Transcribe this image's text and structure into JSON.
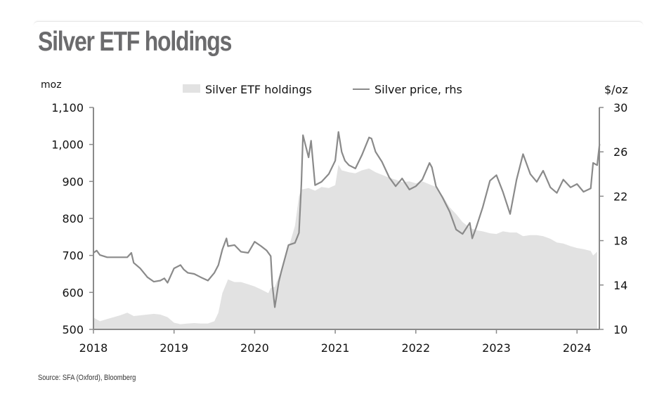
{
  "title": "Silver ETF holdings",
  "source": "Source: SFA (Oxford), Bloomberg",
  "chart_data": {
    "type": "area+line",
    "title": "Silver ETF holdings",
    "xlabel": "",
    "ylabel_left": "moz",
    "ylabel_right": "$/oz",
    "x_ticks": [
      "2018",
      "2019",
      "2020",
      "2021",
      "2022",
      "2023",
      "2024"
    ],
    "x_range": [
      2018.0,
      2024.3
    ],
    "ylim_left": [
      500,
      1100
    ],
    "yticks_left": [
      "1,100",
      "1,000",
      "900",
      "800",
      "700",
      "600",
      "500"
    ],
    "ylim_right": [
      10,
      30
    ],
    "yticks_right": [
      "30",
      "26",
      "22",
      "18",
      "14",
      "10"
    ],
    "grid": false,
    "legend": [
      {
        "name": "Silver ETF holdings",
        "style": "area",
        "color": "#e2e2e2"
      },
      {
        "name": "Silver price, rhs",
        "style": "line",
        "color": "#8a8a8a"
      }
    ],
    "legend_position": "top-center",
    "series": [
      {
        "name": "Silver ETF holdings",
        "axis": "left",
        "x": [
          2018.0,
          2018.08,
          2018.17,
          2018.25,
          2018.33,
          2018.42,
          2018.5,
          2018.58,
          2018.67,
          2018.75,
          2018.83,
          2018.92,
          2019.0,
          2019.08,
          2019.17,
          2019.25,
          2019.33,
          2019.42,
          2019.5,
          2019.55,
          2019.6,
          2019.67,
          2019.75,
          2019.83,
          2019.92,
          2020.0,
          2020.08,
          2020.17,
          2020.2,
          2020.25,
          2020.33,
          2020.42,
          2020.5,
          2020.55,
          2020.58,
          2020.67,
          2020.75,
          2020.83,
          2020.92,
          2021.0,
          2021.04,
          2021.08,
          2021.17,
          2021.25,
          2021.33,
          2021.42,
          2021.5,
          2021.58,
          2021.67,
          2021.75,
          2021.83,
          2021.92,
          2022.0,
          2022.08,
          2022.17,
          2022.25,
          2022.33,
          2022.42,
          2022.5,
          2022.58,
          2022.67,
          2022.75,
          2022.83,
          2022.92,
          2023.0,
          2023.08,
          2023.17,
          2023.25,
          2023.33,
          2023.42,
          2023.5,
          2023.58,
          2023.67,
          2023.75,
          2023.83,
          2023.92,
          2024.0,
          2024.08,
          2024.17,
          2024.2,
          2024.25
        ],
        "values": [
          532,
          522,
          528,
          533,
          538,
          545,
          536,
          538,
          540,
          542,
          540,
          533,
          518,
          514,
          516,
          517,
          516,
          516,
          522,
          545,
          598,
          635,
          628,
          628,
          622,
          616,
          608,
          598,
          612,
          615,
          660,
          720,
          780,
          860,
          878,
          882,
          875,
          885,
          882,
          890,
          945,
          930,
          925,
          922,
          930,
          935,
          925,
          918,
          910,
          905,
          898,
          900,
          895,
          900,
          892,
          885,
          862,
          830,
          812,
          790,
          775,
          768,
          765,
          760,
          758,
          765,
          762,
          762,
          752,
          755,
          755,
          752,
          745,
          735,
          732,
          725,
          720,
          717,
          712,
          700,
          710
        ]
      },
      {
        "name": "Silver price, rhs",
        "axis": "right",
        "x": [
          2018.0,
          2018.04,
          2018.08,
          2018.17,
          2018.25,
          2018.33,
          2018.42,
          2018.47,
          2018.5,
          2018.58,
          2018.67,
          2018.75,
          2018.83,
          2018.88,
          2018.92,
          2019.0,
          2019.08,
          2019.12,
          2019.17,
          2019.25,
          2019.33,
          2019.42,
          2019.5,
          2019.55,
          2019.6,
          2019.65,
          2019.67,
          2019.75,
          2019.83,
          2019.92,
          2020.0,
          2020.08,
          2020.15,
          2020.2,
          2020.22,
          2020.25,
          2020.3,
          2020.33,
          2020.42,
          2020.5,
          2020.55,
          2020.58,
          2020.6,
          2020.67,
          2020.7,
          2020.75,
          2020.83,
          2020.92,
          2021.0,
          2021.04,
          2021.08,
          2021.12,
          2021.17,
          2021.25,
          2021.33,
          2021.42,
          2021.45,
          2021.5,
          2021.58,
          2021.67,
          2021.75,
          2021.83,
          2021.92,
          2022.0,
          2022.08,
          2022.17,
          2022.2,
          2022.25,
          2022.33,
          2022.42,
          2022.5,
          2022.58,
          2022.67,
          2022.7,
          2022.75,
          2022.83,
          2022.92,
          2023.0,
          2023.08,
          2023.17,
          2023.25,
          2023.33,
          2023.42,
          2023.5,
          2023.58,
          2023.67,
          2023.75,
          2023.83,
          2023.92,
          2024.0,
          2024.08,
          2024.17,
          2024.2,
          2024.25,
          2024.28
        ],
        "values": [
          16.9,
          17.1,
          16.7,
          16.5,
          16.5,
          16.5,
          16.5,
          16.9,
          16.0,
          15.5,
          14.7,
          14.3,
          14.4,
          14.6,
          14.2,
          15.5,
          15.8,
          15.4,
          15.1,
          15.0,
          14.7,
          14.4,
          15.1,
          15.8,
          17.2,
          18.2,
          17.5,
          17.6,
          17.0,
          16.9,
          17.9,
          17.5,
          17.1,
          16.6,
          14.0,
          12.0,
          14.3,
          15.2,
          17.6,
          17.8,
          18.7,
          23.1,
          27.5,
          25.5,
          27.0,
          23.0,
          23.3,
          24.0,
          25.2,
          27.8,
          26.0,
          25.2,
          24.8,
          24.5,
          25.7,
          27.3,
          27.2,
          26.0,
          25.1,
          23.7,
          22.9,
          23.6,
          22.6,
          22.9,
          23.5,
          25.0,
          24.6,
          22.9,
          21.9,
          20.6,
          19.0,
          18.6,
          19.6,
          18.2,
          19.2,
          21.0,
          23.4,
          23.9,
          22.4,
          20.4,
          23.5,
          25.8,
          24.0,
          23.3,
          24.3,
          22.8,
          22.3,
          23.5,
          22.8,
          23.1,
          22.4,
          22.7,
          25.0,
          24.8,
          26.7
        ]
      }
    ]
  }
}
